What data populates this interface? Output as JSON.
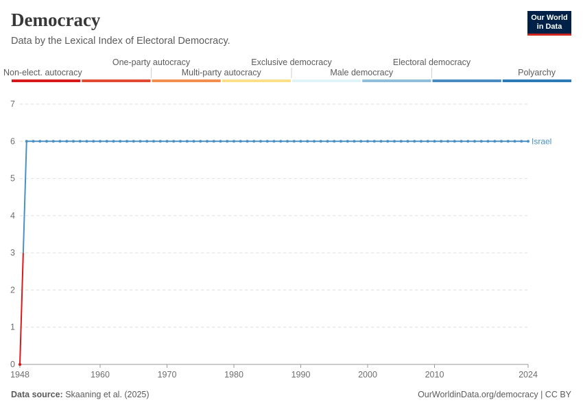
{
  "header": {
    "title": "Democracy",
    "subtitle": "Data by the Lexical Index of Electoral Democracy."
  },
  "logo": {
    "line1": "Our World",
    "line2": "in Data"
  },
  "legend": {
    "categories": [
      {
        "label": "Non-elect. autocracy",
        "color": "#d7191c"
      },
      {
        "label": "One-party autocracy",
        "color": "#e34a33"
      },
      {
        "label": "Multi-party autocracy",
        "color": "#f28f4f"
      },
      {
        "label": "Exclusive democracy",
        "color": "#fee08b"
      },
      {
        "label": "Male democracy",
        "color": "#e0f3f8"
      },
      {
        "label": "Electoral democracy",
        "color": "#91bfdb"
      },
      {
        "label": "Polyarchy",
        "color": "#4a8cc2"
      },
      {
        "label": "",
        "color": "#2c7bb6"
      }
    ]
  },
  "chart_data": {
    "type": "line",
    "title": "Democracy",
    "xlabel": "",
    "ylabel": "",
    "xlim": [
      1948,
      2024
    ],
    "ylim": [
      0,
      7
    ],
    "x_ticks": [
      1948,
      1960,
      1970,
      1980,
      1990,
      2000,
      2010,
      2024
    ],
    "y_ticks": [
      0,
      1,
      2,
      3,
      4,
      5,
      6,
      7
    ],
    "grid": true,
    "series": [
      {
        "name": "Israel",
        "color": "#4a90c2",
        "low_color": "#d7191c",
        "points": [
          [
            1948,
            0
          ],
          [
            1949,
            6
          ],
          [
            2024,
            6
          ]
        ]
      }
    ]
  },
  "footer": {
    "source_label": "Data source:",
    "source_text": "Skaaning et al. (2025)",
    "credit": "OurWorldinData.org/democracy | CC BY"
  }
}
